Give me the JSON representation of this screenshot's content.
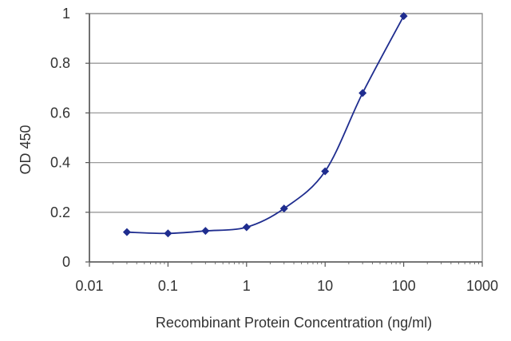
{
  "chart_data": {
    "type": "line",
    "title": "",
    "xlabel": "Recombinant Protein Concentration (ng/ml)",
    "ylabel": "OD 450",
    "x_scale": "log",
    "xlim": [
      0.01,
      1000
    ],
    "ylim": [
      0,
      1
    ],
    "grid": "horizontal",
    "legend": "none",
    "x_ticks": [
      "0.01",
      "0.1",
      "1",
      "10",
      "100",
      "1000"
    ],
    "y_ticks": [
      "0",
      "0.2",
      "0.4",
      "0.6",
      "0.8",
      "1"
    ],
    "series": [
      {
        "color": "#1f2d8f",
        "x": [
          0.03,
          0.1,
          0.3,
          1,
          3,
          10,
          30,
          100
        ],
        "y": [
          0.12,
          0.115,
          0.125,
          0.14,
          0.215,
          0.365,
          0.68,
          0.99
        ]
      }
    ]
  }
}
